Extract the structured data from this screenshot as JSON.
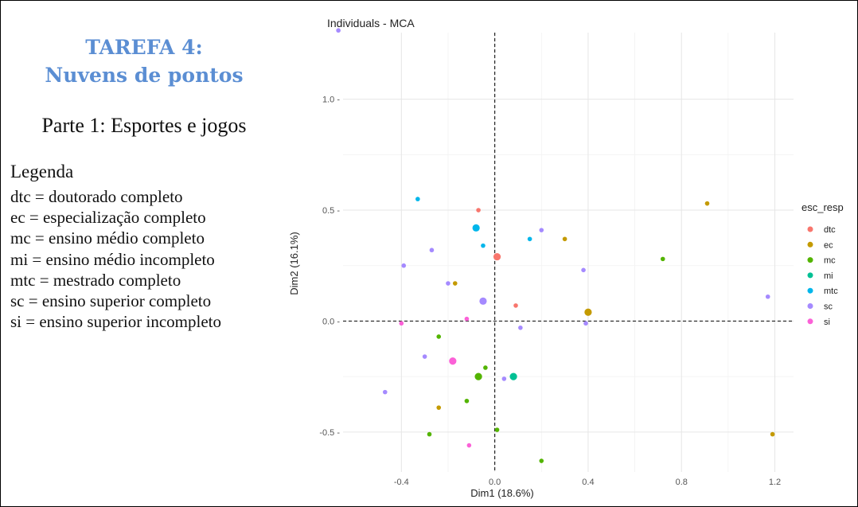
{
  "slide": {
    "title_line1": "TAREFA 4:",
    "title_line2": "Nuvens de pontos",
    "subtitle": "Parte 1: Esportes e jogos",
    "legend_heading": "Legenda",
    "legend_items": [
      "dtc = doutorado completo",
      "ec = especialização completo",
      "mc = ensino médio completo",
      "mi = ensino médio incompleto",
      "mtc = mestrado completo",
      "sc = ensino superior completo",
      "si = ensino superior incompleto"
    ]
  },
  "chart_data": {
    "type": "scatter",
    "title": "Individuals - MCA",
    "xlabel": "Dim1 (18.6%)",
    "ylabel": "Dim2 (16.1%)",
    "xlim": [
      -0.65,
      1.28
    ],
    "ylim": [
      -0.68,
      1.3
    ],
    "xticks": [
      -0.4,
      0.0,
      0.4,
      0.8,
      1.2
    ],
    "xtick_labels": [
      "-0.4",
      "0.0",
      "0.4",
      "0.8",
      "1.2"
    ],
    "yticks": [
      -0.5,
      0.0,
      0.5,
      1.0
    ],
    "ytick_labels": [
      "-0.5 -",
      "0.0 -",
      "0.5 -",
      "1.0 -"
    ],
    "grid": true,
    "reference_lines": {
      "x": 0,
      "y": 0,
      "style": "dashed"
    },
    "legend_title": "esc_resp",
    "legend_position": "right",
    "series": [
      {
        "name": "dtc",
        "color": "#f8766d",
        "points": [
          [
            -0.07,
            0.5,
            1
          ],
          [
            0.01,
            0.29,
            2
          ],
          [
            0.09,
            0.07,
            1
          ]
        ]
      },
      {
        "name": "ec",
        "color": "#c49a00",
        "points": [
          [
            0.91,
            0.53,
            1
          ],
          [
            0.3,
            0.37,
            1
          ],
          [
            -0.17,
            0.17,
            1
          ],
          [
            0.4,
            0.04,
            2
          ],
          [
            -0.24,
            -0.39,
            1
          ],
          [
            1.19,
            -0.51,
            1
          ]
        ]
      },
      {
        "name": "mc",
        "color": "#53b400",
        "points": [
          [
            0.72,
            0.28,
            1
          ],
          [
            -0.24,
            -0.07,
            1
          ],
          [
            -0.04,
            -0.21,
            1
          ],
          [
            -0.07,
            -0.25,
            2
          ],
          [
            -0.12,
            -0.36,
            1
          ],
          [
            0.01,
            -0.49,
            1
          ],
          [
            -0.28,
            -0.51,
            1
          ],
          [
            0.2,
            -0.63,
            1
          ]
        ]
      },
      {
        "name": "mi",
        "color": "#00c094",
        "points": [
          [
            0.08,
            -0.25,
            2
          ]
        ]
      },
      {
        "name": "mtc",
        "color": "#00b6eb",
        "points": [
          [
            -0.33,
            0.55,
            1
          ],
          [
            -0.08,
            0.42,
            2
          ],
          [
            0.15,
            0.37,
            1
          ],
          [
            -0.05,
            0.34,
            1
          ]
        ]
      },
      {
        "name": "sc",
        "color": "#a58aff",
        "points": [
          [
            -0.67,
            1.31,
            1
          ],
          [
            0.2,
            0.41,
            1
          ],
          [
            -0.27,
            0.32,
            1
          ],
          [
            -0.39,
            0.25,
            1
          ],
          [
            0.38,
            0.23,
            1
          ],
          [
            -0.2,
            0.17,
            1
          ],
          [
            1.17,
            0.11,
            1
          ],
          [
            -0.05,
            0.09,
            2
          ],
          [
            0.11,
            -0.03,
            1
          ],
          [
            0.39,
            -0.01,
            1
          ],
          [
            -0.3,
            -0.16,
            1
          ],
          [
            0.04,
            -0.26,
            1
          ],
          [
            -0.47,
            -0.32,
            1
          ]
        ]
      },
      {
        "name": "si",
        "color": "#fb61d7",
        "points": [
          [
            -0.4,
            -0.01,
            1
          ],
          [
            -0.12,
            0.01,
            1
          ],
          [
            -0.18,
            -0.18,
            2
          ],
          [
            -0.11,
            -0.56,
            1
          ]
        ]
      }
    ]
  }
}
